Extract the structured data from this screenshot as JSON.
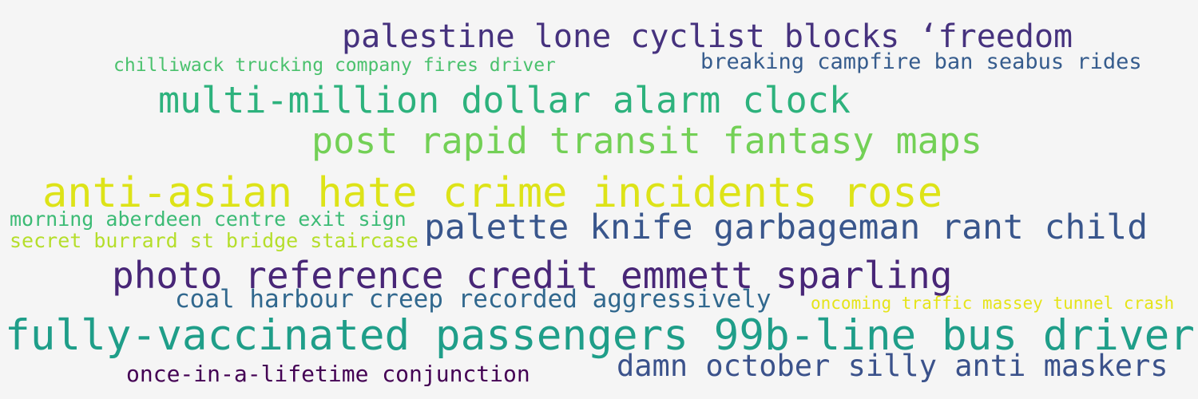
{
  "phrases": [
    {
      "text": "palestine lone cyclist blocks ‘freedom",
      "color": "#46327e"
    },
    {
      "text": "chilliwack trucking company fires driver",
      "color": "#4ac16d"
    },
    {
      "text": "breaking campfire ban seabus rides",
      "color": "#365c8d"
    },
    {
      "text": "multi-million dollar alarm clock",
      "color": "#2db27d"
    },
    {
      "text": "post rapid transit fantasy maps",
      "color": "#73d056"
    },
    {
      "text": "anti-asian hate crime incidents rose",
      "color": "#dde318"
    },
    {
      "text": "morning aberdeen centre exit sign",
      "color": "#3cbb75"
    },
    {
      "text": "secret burrard st bridge staircase",
      "color": "#b5de2b"
    },
    {
      "text": "palette knife garbageman rant child",
      "color": "#39568c"
    },
    {
      "text": "photo reference credit emmett sparling",
      "color": "#482677"
    },
    {
      "text": "coal harbour creep recorded aggressively",
      "color": "#31688e"
    },
    {
      "text": "oncoming traffic massey tunnel crash",
      "color": "#e5e419"
    },
    {
      "text": "fully-vaccinated passengers 99b-line bus driver",
      "color": "#1f9e89"
    },
    {
      "text": "once-in-a-lifetime conjunction",
      "color": "#440154"
    },
    {
      "text": "damn october silly anti maskers",
      "color": "#3b528b"
    }
  ]
}
